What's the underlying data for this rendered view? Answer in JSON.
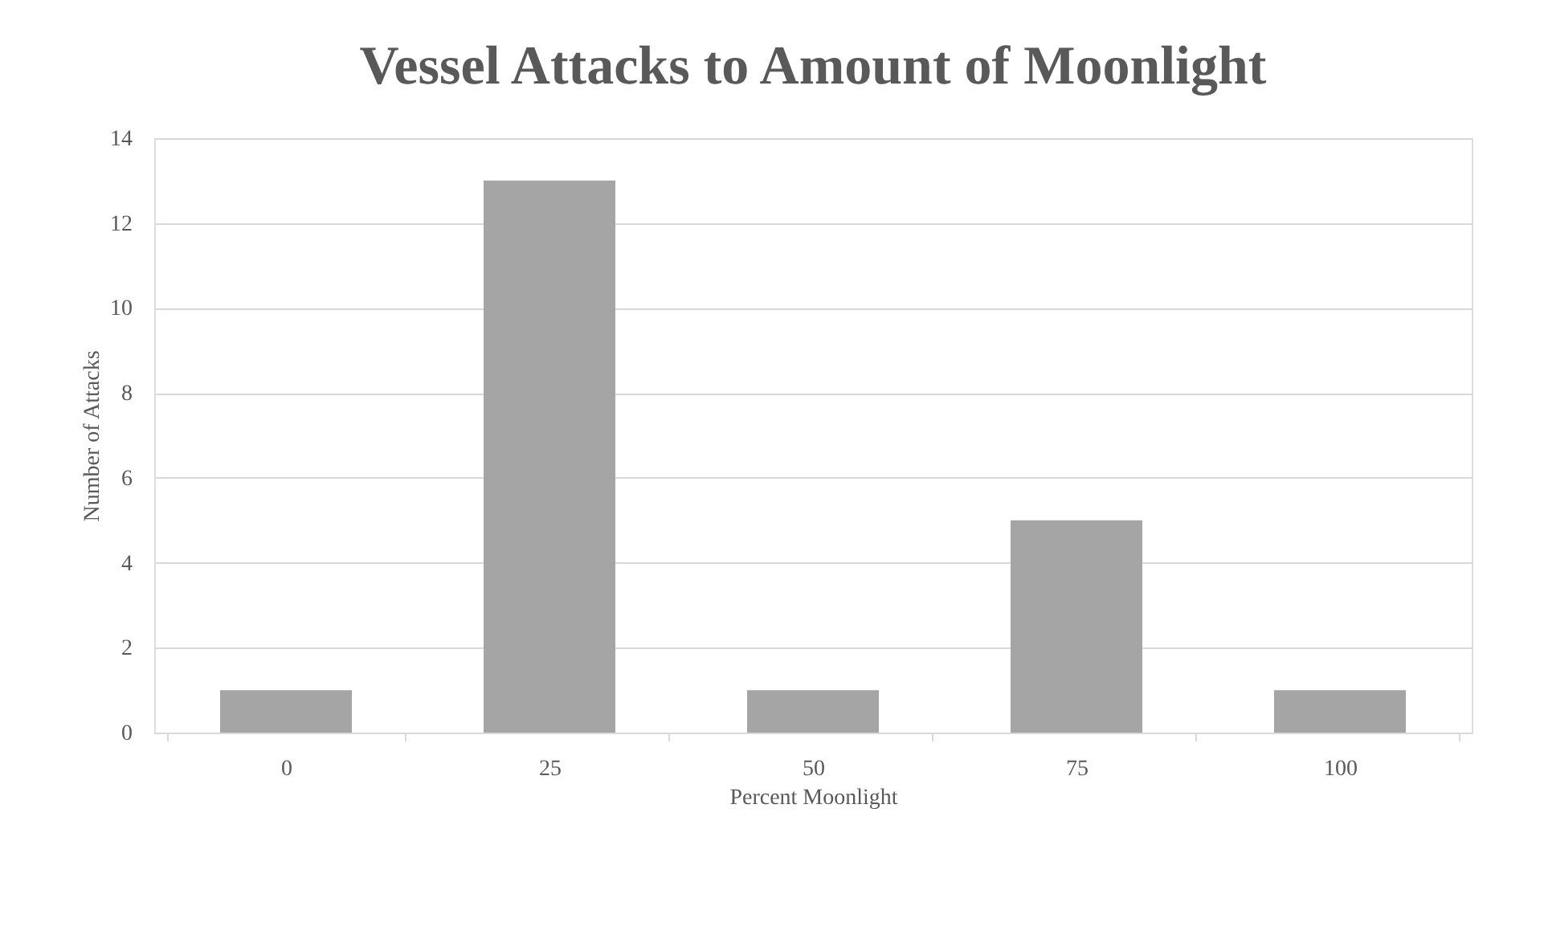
{
  "chart_data": {
    "type": "bar",
    "title": "Vessel Attacks to Amount of Moonlight",
    "xlabel": "Percent Moonlight",
    "ylabel": "Number of Attacks",
    "categories": [
      "0",
      "25",
      "50",
      "75",
      "100"
    ],
    "values": [
      1,
      13,
      1,
      5,
      1
    ],
    "color": "#a5a5a5",
    "ylim": [
      0,
      14
    ],
    "yticks": [
      0,
      2,
      4,
      6,
      8,
      10,
      12,
      14
    ],
    "grid": "y"
  }
}
